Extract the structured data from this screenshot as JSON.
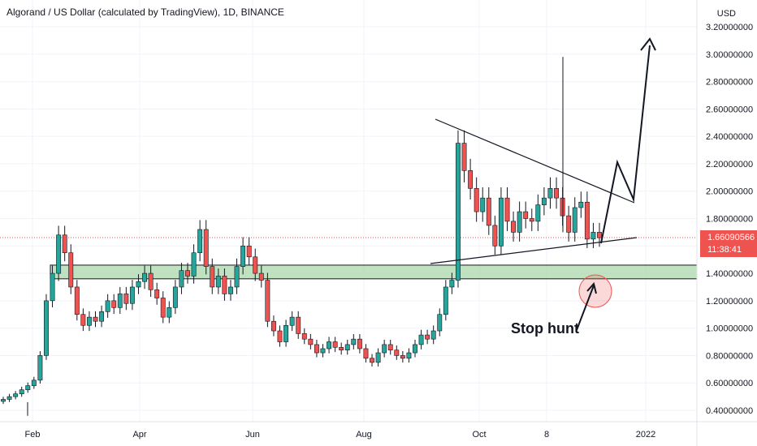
{
  "header": {
    "title": "Algorand / US Dollar (calculated by TradingView), 1D, BINANCE",
    "currency": "USD"
  },
  "price_tag": {
    "price": "1.66090566",
    "countdown": "11:38:41",
    "color": "#ef5350"
  },
  "annotations": {
    "stop_hunt": "Stop hunt"
  },
  "colors": {
    "up": "#26a69a",
    "down": "#ef5350",
    "zone_fill": "#a5d6a7",
    "grid": "#f0f3fa"
  },
  "chart_data": {
    "type": "candlestick",
    "x_labels": [
      "Feb",
      "Apr",
      "Jun",
      "Aug",
      "Oct",
      "8",
      "2022"
    ],
    "y_ticks": [
      "3.20000000",
      "3.00000000",
      "2.80000000",
      "2.60000000",
      "2.40000000",
      "2.20000000",
      "2.00000000",
      "1.80000000",
      "1.60000000",
      "1.40000000",
      "1.20000000",
      "1.00000000",
      "0.80000000",
      "0.60000000",
      "0.40000000"
    ],
    "ylim": [
      0.35,
      3.3
    ],
    "last_price": 1.66090566,
    "support_zone": [
      1.36,
      1.46
    ],
    "closes": [
      0.48,
      0.5,
      0.52,
      0.55,
      0.58,
      0.62,
      0.8,
      1.2,
      1.4,
      1.68,
      1.55,
      1.3,
      1.1,
      1.02,
      1.08,
      1.05,
      1.12,
      1.2,
      1.15,
      1.25,
      1.18,
      1.3,
      1.34,
      1.4,
      1.28,
      1.22,
      1.08,
      1.15,
      1.3,
      1.42,
      1.38,
      1.55,
      1.72,
      1.45,
      1.3,
      1.38,
      1.25,
      1.3,
      1.45,
      1.6,
      1.52,
      1.4,
      1.35,
      1.05,
      0.98,
      0.9,
      1.02,
      1.08,
      0.96,
      0.92,
      0.88,
      0.82,
      0.85,
      0.9,
      0.86,
      0.84,
      0.88,
      0.92,
      0.85,
      0.78,
      0.75,
      0.82,
      0.88,
      0.84,
      0.8,
      0.78,
      0.82,
      0.88,
      0.95,
      0.92,
      0.98,
      1.1,
      1.3,
      1.35,
      2.35,
      2.15,
      2.02,
      1.85,
      1.95,
      1.75,
      1.6,
      1.95,
      1.78,
      1.7,
      1.85,
      1.8,
      1.78,
      1.9,
      1.95,
      2.02,
      1.95,
      1.82,
      1.7,
      1.88,
      1.92,
      1.65,
      1.7,
      1.66
    ]
  }
}
